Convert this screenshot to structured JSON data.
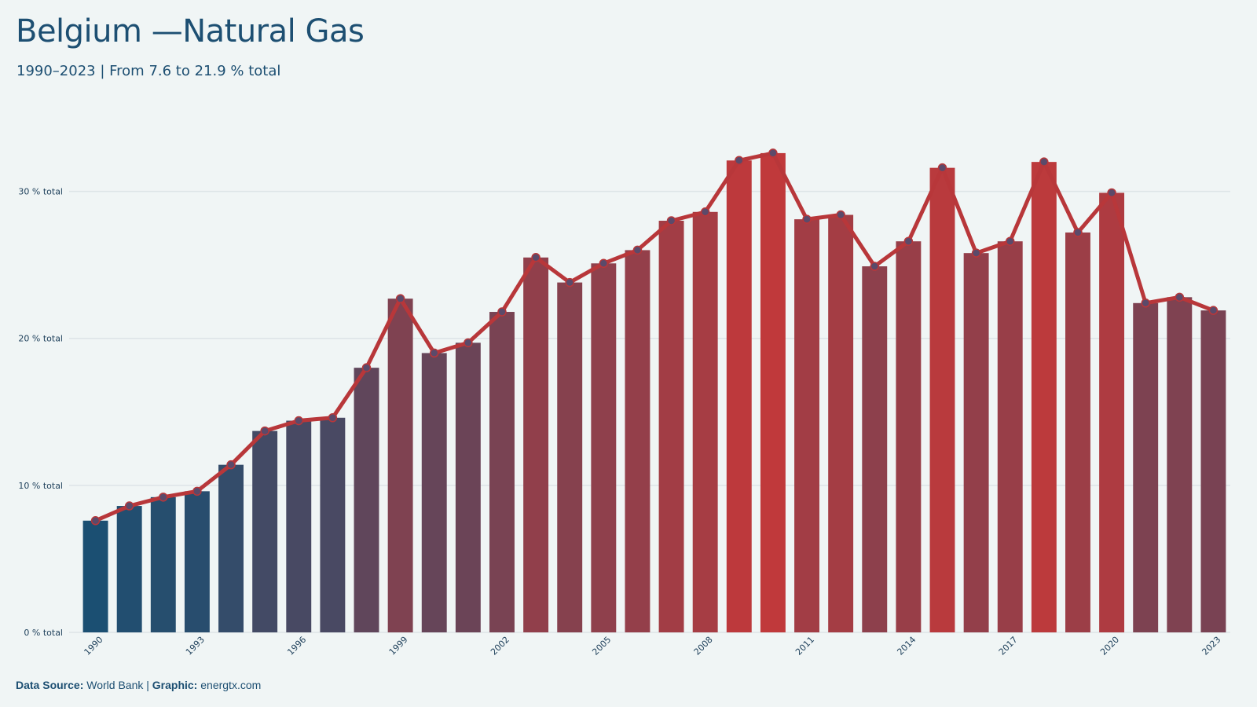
{
  "title": "Belgium —Natural Gas",
  "subtitle": "1990–2023 | From 7.6 to 21.9 % total",
  "footer": {
    "source_label": "Data Source:",
    "source_value": "World Bank",
    "separator": "|",
    "graphic_label": "Graphic:",
    "graphic_value": "energtx.com"
  },
  "colors": {
    "low": "#1b4f72",
    "high": "#c0393b",
    "line": "#b8373a",
    "marker": "#5b4a6a",
    "grid": "#dde4e7",
    "background": "#f0f5f5"
  },
  "chart_data": {
    "type": "bar",
    "title": "Belgium —Natural Gas",
    "subtitle": "1990–2023 | From 7.6 to 21.9 % total",
    "unit": "% total",
    "categories": [
      "1990",
      "1991",
      "1992",
      "1993",
      "1994",
      "1995",
      "1996",
      "1997",
      "1998",
      "1999",
      "2000",
      "2001",
      "2002",
      "2003",
      "2004",
      "2005",
      "2006",
      "2007",
      "2008",
      "2009",
      "2010",
      "2011",
      "2012",
      "2013",
      "2014",
      "2015",
      "2016",
      "2017",
      "2018",
      "2019",
      "2020",
      "2021",
      "2022",
      "2023"
    ],
    "values": [
      7.6,
      8.6,
      9.2,
      9.6,
      11.4,
      13.7,
      14.4,
      14.6,
      18.0,
      22.7,
      19.0,
      19.7,
      21.8,
      25.5,
      23.8,
      25.1,
      26.0,
      28.0,
      28.6,
      32.1,
      32.6,
      28.1,
      28.4,
      24.9,
      26.6,
      31.6,
      25.8,
      26.6,
      32.0,
      27.2,
      29.9,
      22.4,
      22.8,
      21.9
    ],
    "overlay": "line-with-markers",
    "ylim": [
      0,
      35
    ],
    "yticks": [
      0,
      10,
      20,
      30
    ],
    "ytick_labels": [
      "0 % total",
      "10 % total",
      "20 % total",
      "30 % total"
    ],
    "xtick_labels": [
      "1990",
      "1993",
      "1996",
      "1999",
      "2002",
      "2005",
      "2008",
      "2011",
      "2014",
      "2017",
      "2020",
      "2023"
    ],
    "grid": true,
    "legend": "none"
  }
}
